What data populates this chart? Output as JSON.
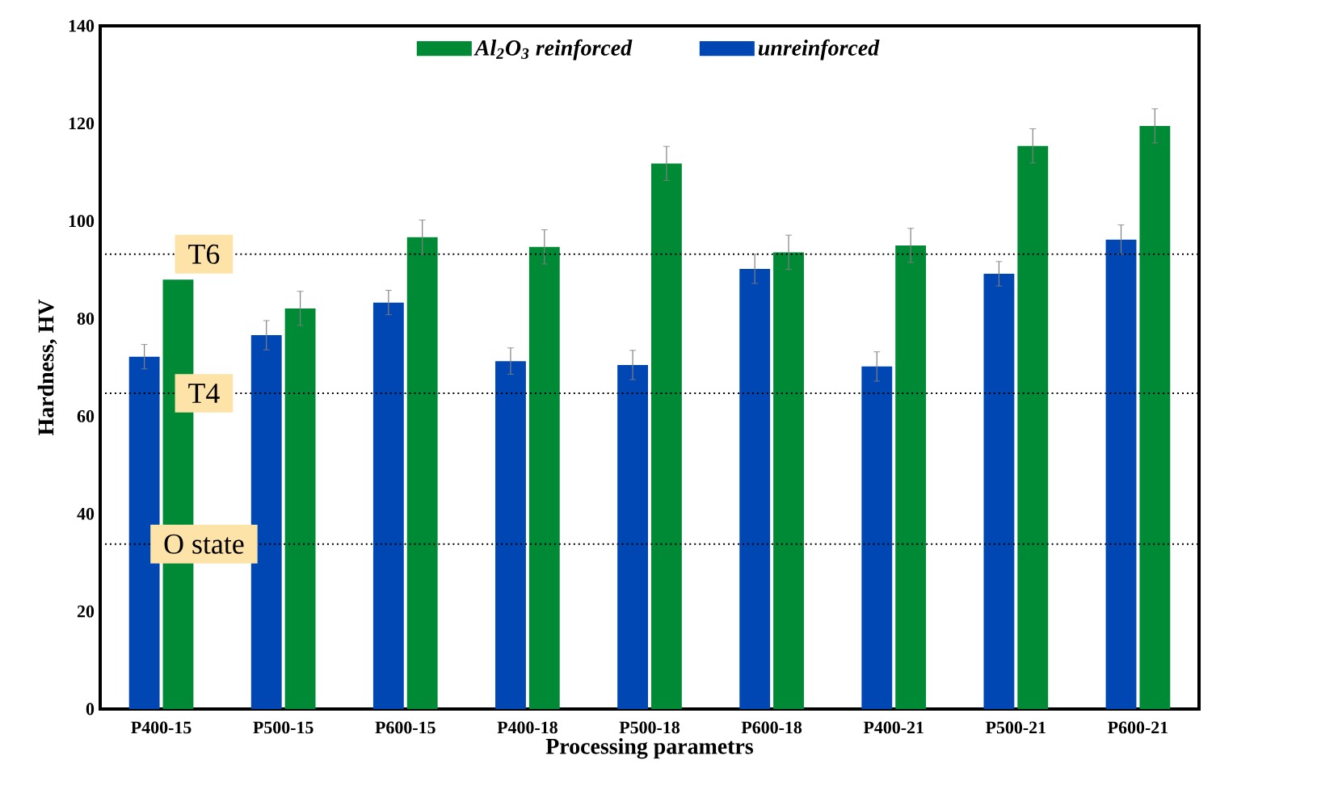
{
  "chart_data": {
    "type": "bar",
    "xlabel": "Processing parametrs",
    "ylabel": "Hardness, HV",
    "categories": [
      "P400-15",
      "P500-15",
      "P600-15",
      "P400-18",
      "P500-18",
      "P600-18",
      "P400-21",
      "P500-21",
      "P600-21"
    ],
    "series": [
      {
        "name": "unreinforced",
        "color": "#0047b3",
        "values": [
          72.2,
          76.6,
          83.3,
          71.3,
          70.5,
          90.2,
          70.2,
          89.2,
          96.2
        ],
        "errors": [
          2.5,
          3,
          2.5,
          2.7,
          3,
          3,
          3,
          2.5,
          3
        ]
      },
      {
        "name": "Al$_{2}$O$_{3}$ reinforced",
        "color": "#008a36",
        "values": [
          88,
          82.1,
          96.7,
          94.7,
          111.8,
          93.6,
          95,
          115.4,
          119.5
        ],
        "errors": [
          null,
          3.5,
          3.5,
          3.5,
          3.5,
          3.5,
          3.5,
          3.5,
          3.5
        ]
      }
    ],
    "ylim": [
      0,
      140
    ],
    "yticks": [
      0,
      20,
      40,
      60,
      80,
      100,
      120,
      140
    ],
    "ref_lines": [
      {
        "axis": "y",
        "value": 93.2,
        "label": "T6",
        "color": "#000000",
        "line_style": "dotted"
      },
      {
        "axis": "y",
        "value": 64.7,
        "label": "T4",
        "color": "#000000",
        "line_style": "dotted"
      },
      {
        "axis": "y",
        "value": 33.8,
        "label": "O state",
        "color": "#000000",
        "line_style": "dotted"
      }
    ],
    "legend": "top"
  }
}
